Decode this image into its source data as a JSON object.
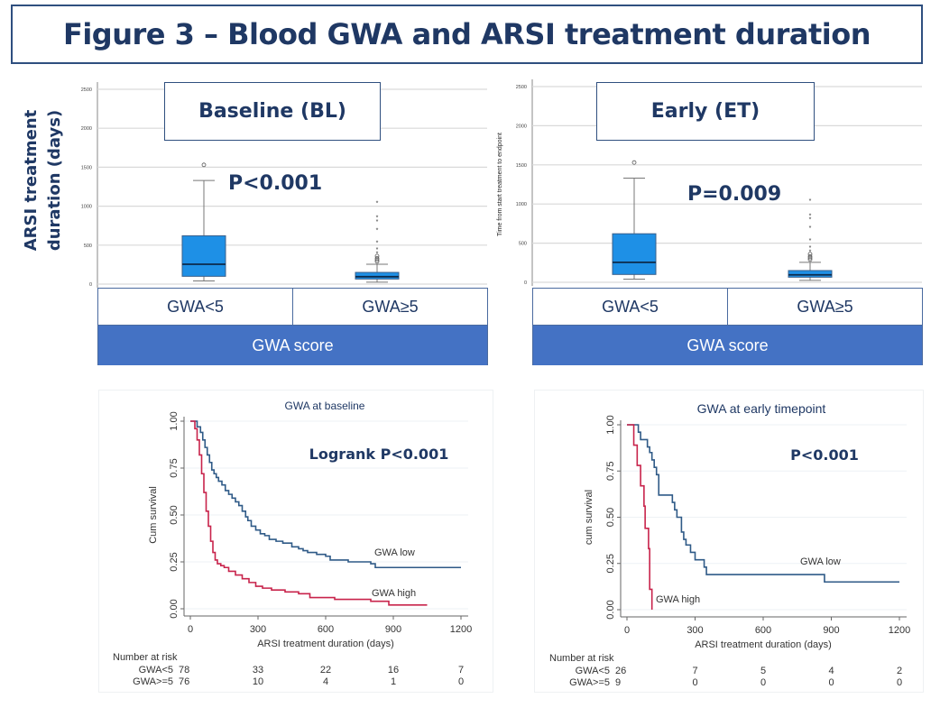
{
  "figure_title": "Figure 3 – Blood GWA and ARSI treatment duration",
  "side_ylabel_line1": "ARSI treatment",
  "side_ylabel_line2": "duration (days)",
  "colors": {
    "title_navy": "#1f3864",
    "box_fill": "#1e90e6",
    "gwa_low_line": "#2f5a87",
    "gwa_high_line": "#c8234b",
    "category_footer": "#4472c4"
  },
  "chart_data": [
    {
      "type": "box",
      "id": "baseline",
      "panel_label": "Baseline (BL)",
      "pvalue": "P<0.001",
      "ylabel": "",
      "ylim": [
        0,
        2500
      ],
      "yticks": [
        0,
        500,
        1000,
        1500,
        2000,
        2500
      ],
      "grid": true,
      "categories": [
        "GWA<5",
        "GWA≥5"
      ],
      "xlabel": "GWA score",
      "boxes": [
        {
          "name": "GWA<5",
          "whisker_low": 40,
          "q1": 100,
          "median": 255,
          "q3": 620,
          "whisker_high": 1330,
          "outliers_circle": [
            1530
          ],
          "outliers_star": []
        },
        {
          "name": "GWA≥5",
          "whisker_low": 25,
          "q1": 65,
          "median": 95,
          "q3": 150,
          "whisker_high": 255,
          "outliers_circle": [
            290,
            310,
            330,
            360
          ],
          "outliers_star": [
            400,
            450,
            540,
            700,
            810,
            860,
            1050
          ]
        }
      ]
    },
    {
      "type": "box",
      "id": "early",
      "panel_label": "Early (ET)",
      "pvalue": "P=0.009",
      "ylabel": "Time from start treatment to endpoint",
      "ylim": [
        0,
        2500
      ],
      "yticks": [
        0,
        500,
        1000,
        1500,
        2000,
        2500
      ],
      "grid": true,
      "categories": [
        "GWA<5",
        "GWA≥5"
      ],
      "xlabel": "GWA score",
      "boxes": [
        {
          "name": "GWA<5",
          "whisker_low": 40,
          "q1": 100,
          "median": 255,
          "q3": 620,
          "whisker_high": 1330,
          "outliers_circle": [
            1530
          ],
          "outliers_star": []
        },
        {
          "name": "GWA≥5",
          "whisker_low": 25,
          "q1": 65,
          "median": 95,
          "q3": 150,
          "whisker_high": 255,
          "outliers_circle": [
            290,
            310,
            330,
            360
          ],
          "outliers_star": [
            400,
            450,
            540,
            700,
            810,
            860,
            1050
          ]
        }
      ]
    },
    {
      "type": "line",
      "subtype": "kaplan-meier",
      "id": "km_baseline",
      "title": "GWA at baseline",
      "annotation": "Logrank P<0.001",
      "xlabel": "ARSI treatment duration (days)",
      "ylabel": "Cum survival",
      "xlim": [
        0,
        1200
      ],
      "ylim": [
        0,
        1
      ],
      "xticks": [
        0,
        300,
        600,
        900,
        1200
      ],
      "yticks": [
        "0.00",
        "0.25",
        "0.50",
        "0.75",
        "1.00"
      ],
      "grid": true,
      "series": [
        {
          "name": "GWA low",
          "color_key": "gwa_low_line",
          "x": [
            0,
            30,
            45,
            55,
            65,
            75,
            85,
            95,
            105,
            115,
            125,
            140,
            155,
            170,
            185,
            200,
            215,
            230,
            245,
            255,
            270,
            290,
            310,
            330,
            350,
            380,
            410,
            450,
            480,
            500,
            520,
            560,
            600,
            620,
            700,
            800,
            820,
            1200
          ],
          "y": [
            1.0,
            0.97,
            0.94,
            0.9,
            0.86,
            0.82,
            0.78,
            0.74,
            0.72,
            0.7,
            0.68,
            0.66,
            0.63,
            0.61,
            0.59,
            0.57,
            0.55,
            0.52,
            0.49,
            0.47,
            0.44,
            0.42,
            0.4,
            0.39,
            0.37,
            0.36,
            0.35,
            0.33,
            0.32,
            0.31,
            0.3,
            0.29,
            0.28,
            0.26,
            0.25,
            0.24,
            0.22,
            0.22
          ]
        },
        {
          "name": "GWA high",
          "color_key": "gwa_high_line",
          "x": [
            0,
            20,
            30,
            40,
            50,
            60,
            70,
            80,
            90,
            100,
            110,
            120,
            135,
            150,
            170,
            200,
            230,
            260,
            290,
            320,
            360,
            420,
            480,
            530,
            640,
            800,
            880,
            1050
          ],
          "y": [
            1.0,
            0.96,
            0.9,
            0.82,
            0.72,
            0.62,
            0.52,
            0.44,
            0.36,
            0.3,
            0.26,
            0.24,
            0.23,
            0.22,
            0.2,
            0.18,
            0.16,
            0.14,
            0.12,
            0.11,
            0.1,
            0.09,
            0.08,
            0.06,
            0.05,
            0.04,
            0.02,
            0.02
          ]
        }
      ],
      "number_at_risk": {
        "label": "Number at risk",
        "rows": [
          {
            "group": "GWA<5",
            "values": [
              78,
              33,
              22,
              16,
              7
            ]
          },
          {
            "group": "GWA>=5",
            "values": [
              76,
              10,
              4,
              1,
              0
            ]
          }
        ]
      }
    },
    {
      "type": "line",
      "subtype": "kaplan-meier",
      "id": "km_early",
      "title": "GWA at early timepoint",
      "annotation": "P<0.001",
      "xlabel": "ARSI treatment duration (days)",
      "ylabel": "cum survival",
      "xlim": [
        0,
        1200
      ],
      "ylim": [
        0,
        1
      ],
      "xticks": [
        0,
        300,
        600,
        900,
        1200
      ],
      "yticks": [
        "0.00",
        "0.25",
        "0.50",
        "0.75",
        "1.00"
      ],
      "grid": true,
      "series": [
        {
          "name": "GWA low",
          "color_key": "gwa_low_line",
          "x": [
            0,
            50,
            60,
            90,
            100,
            110,
            120,
            130,
            140,
            200,
            210,
            220,
            240,
            250,
            260,
            280,
            300,
            340,
            350,
            870,
            1200
          ],
          "y": [
            1.0,
            0.96,
            0.92,
            0.88,
            0.85,
            0.81,
            0.77,
            0.73,
            0.62,
            0.58,
            0.54,
            0.5,
            0.42,
            0.38,
            0.35,
            0.31,
            0.27,
            0.23,
            0.19,
            0.15,
            0.15
          ]
        },
        {
          "name": "GWA high",
          "color_key": "gwa_high_line",
          "x": [
            0,
            30,
            45,
            60,
            75,
            80,
            95,
            100,
            110
          ],
          "y": [
            1.0,
            0.89,
            0.78,
            0.67,
            0.56,
            0.44,
            0.33,
            0.11,
            0.0
          ]
        }
      ],
      "number_at_risk": {
        "label": "Number at risk",
        "rows": [
          {
            "group": "GWA<5",
            "values": [
              26,
              7,
              5,
              4,
              2
            ]
          },
          {
            "group": "GWA>=5",
            "values": [
              9,
              0,
              0,
              0,
              0
            ]
          }
        ]
      }
    }
  ]
}
